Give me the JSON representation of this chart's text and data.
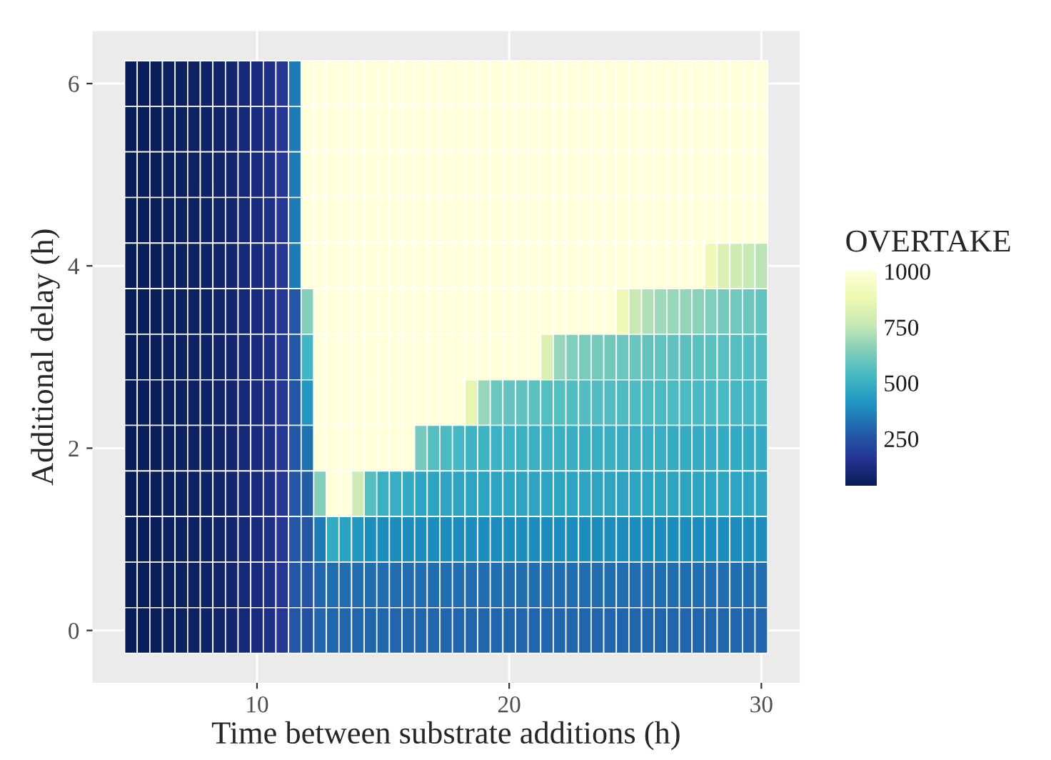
{
  "chart_data": {
    "type": "heatmap",
    "xlabel": "Time between substrate additions (h)",
    "ylabel": "Additional delay (h)",
    "legend_title": "OVERTAKE",
    "x": [
      5,
      5.5,
      6,
      6.5,
      7,
      7.5,
      8,
      8.5,
      9,
      9.5,
      10,
      10.5,
      11,
      11.5,
      12,
      12.5,
      13,
      13.5,
      14,
      14.5,
      15,
      15.5,
      16,
      16.5,
      17,
      17.5,
      18,
      18.5,
      19,
      19.5,
      20,
      20.5,
      21,
      21.5,
      22,
      22.5,
      23,
      23.5,
      24,
      24.5,
      25,
      25.5,
      26,
      26.5,
      27,
      27.5,
      28,
      28.5,
      29,
      29.5,
      30
    ],
    "y": [
      6,
      5.5,
      5,
      4.5,
      4,
      3.5,
      3,
      2.5,
      2,
      1.5,
      1,
      0.5,
      0
    ],
    "xlim": [
      3.475,
      31.525
    ],
    "ylim": [
      -0.575,
      6.575
    ],
    "xticks": [
      10,
      20,
      30
    ],
    "yticks": [
      0,
      2,
      4,
      6
    ],
    "clim": [
      40,
      1000
    ],
    "cticks": [
      250,
      500,
      750,
      1000
    ],
    "grid": true,
    "cells": [
      [
        40,
        45,
        50,
        55,
        60,
        65,
        70,
        80,
        90,
        100,
        115,
        135,
        170,
        350,
        1000,
        1000,
        1000,
        1000,
        1000,
        1000,
        1000,
        1000,
        1000,
        1000,
        1000,
        1000,
        1000,
        1000,
        1000,
        1000,
        1000,
        1000,
        1000,
        1000,
        1000,
        1000,
        1000,
        1000,
        1000,
        1000,
        1000,
        1000,
        1000,
        1000,
        1000,
        1000,
        1000,
        1000,
        1000,
        1000,
        1000
      ],
      [
        40,
        45,
        50,
        55,
        60,
        65,
        70,
        80,
        90,
        100,
        115,
        135,
        170,
        350,
        1000,
        1000,
        1000,
        1000,
        1000,
        1000,
        1000,
        1000,
        1000,
        1000,
        1000,
        1000,
        1000,
        1000,
        1000,
        1000,
        1000,
        1000,
        1000,
        1000,
        1000,
        1000,
        1000,
        1000,
        1000,
        1000,
        1000,
        1000,
        1000,
        1000,
        1000,
        1000,
        1000,
        1000,
        1000,
        1000,
        1000
      ],
      [
        40,
        45,
        50,
        55,
        60,
        65,
        70,
        80,
        90,
        100,
        115,
        135,
        170,
        350,
        1000,
        1000,
        1000,
        1000,
        1000,
        1000,
        1000,
        1000,
        1000,
        1000,
        1000,
        1000,
        1000,
        1000,
        1000,
        1000,
        1000,
        1000,
        1000,
        1000,
        1000,
        1000,
        1000,
        1000,
        1000,
        1000,
        1000,
        1000,
        1000,
        1000,
        1000,
        1000,
        1000,
        1000,
        1000,
        1000,
        1000
      ],
      [
        40,
        45,
        50,
        55,
        60,
        65,
        70,
        80,
        90,
        100,
        115,
        135,
        170,
        350,
        1000,
        1000,
        1000,
        1000,
        1000,
        1000,
        1000,
        1000,
        1000,
        1000,
        1000,
        1000,
        1000,
        1000,
        1000,
        1000,
        1000,
        1000,
        1000,
        1000,
        1000,
        1000,
        1000,
        1000,
        1000,
        1000,
        1000,
        1000,
        1000,
        1000,
        1000,
        1000,
        1000,
        1000,
        1000,
        1000,
        1000
      ],
      [
        40,
        45,
        50,
        55,
        60,
        65,
        70,
        80,
        90,
        100,
        115,
        135,
        170,
        350,
        1000,
        1000,
        1000,
        1000,
        1000,
        1000,
        1000,
        1000,
        1000,
        1000,
        1000,
        1000,
        1000,
        1000,
        1000,
        1000,
        1000,
        1000,
        1000,
        1000,
        1000,
        1000,
        1000,
        1000,
        1000,
        1000,
        1000,
        1000,
        1000,
        1000,
        1000,
        1000,
        900,
        820,
        780,
        760,
        740
      ],
      [
        40,
        45,
        50,
        55,
        60,
        65,
        70,
        80,
        90,
        100,
        115,
        135,
        170,
        260,
        650,
        1000,
        1000,
        1000,
        1000,
        1000,
        1000,
        1000,
        1000,
        1000,
        1000,
        1000,
        1000,
        1000,
        1000,
        1000,
        1000,
        1000,
        1000,
        1000,
        1000,
        1000,
        1000,
        1000,
        1000,
        900,
        760,
        720,
        690,
        680,
        670,
        660,
        640,
        620,
        610,
        600,
        590
      ],
      [
        40,
        45,
        50,
        55,
        60,
        65,
        70,
        80,
        90,
        100,
        115,
        135,
        170,
        260,
        520,
        1000,
        1000,
        1000,
        1000,
        1000,
        1000,
        1000,
        1000,
        1000,
        1000,
        1000,
        1000,
        1000,
        1000,
        1000,
        1000,
        1000,
        1000,
        820,
        680,
        640,
        630,
        620,
        610,
        600,
        595,
        590,
        585,
        580,
        575,
        570,
        570,
        565,
        560,
        555,
        550
      ],
      [
        40,
        45,
        50,
        55,
        60,
        65,
        70,
        80,
        90,
        100,
        115,
        135,
        170,
        260,
        420,
        1000,
        1000,
        1000,
        1000,
        1000,
        1000,
        1000,
        1000,
        1000,
        1000,
        1000,
        1000,
        850,
        680,
        600,
        590,
        580,
        570,
        560,
        560,
        555,
        555,
        550,
        550,
        545,
        545,
        540,
        540,
        540,
        540,
        535,
        535,
        535,
        530,
        530,
        530
      ],
      [
        40,
        45,
        50,
        55,
        60,
        65,
        70,
        80,
        90,
        100,
        115,
        135,
        170,
        260,
        330,
        1000,
        1000,
        1000,
        1000,
        1000,
        1000,
        1000,
        1000,
        620,
        560,
        540,
        530,
        510,
        510,
        505,
        505,
        500,
        500,
        500,
        500,
        495,
        495,
        495,
        495,
        490,
        490,
        490,
        490,
        485,
        485,
        485,
        485,
        480,
        480,
        480,
        480
      ],
      [
        40,
        45,
        50,
        55,
        60,
        65,
        70,
        80,
        90,
        100,
        115,
        135,
        170,
        260,
        280,
        650,
        1000,
        1000,
        780,
        560,
        500,
        490,
        480,
        460,
        460,
        460,
        460,
        460,
        460,
        460,
        460,
        460,
        460,
        460,
        460,
        460,
        460,
        460,
        460,
        460,
        460,
        460,
        460,
        460,
        460,
        460,
        460,
        460,
        460,
        460,
        460
      ],
      [
        40,
        45,
        50,
        55,
        60,
        65,
        70,
        80,
        90,
        100,
        115,
        135,
        170,
        260,
        260,
        350,
        480,
        450,
        420,
        390,
        390,
        390,
        390,
        390,
        390,
        390,
        390,
        390,
        390,
        390,
        390,
        390,
        390,
        390,
        390,
        390,
        390,
        390,
        390,
        390,
        390,
        390,
        390,
        390,
        390,
        390,
        390,
        390,
        390,
        390,
        390
      ],
      [
        40,
        45,
        50,
        55,
        60,
        65,
        70,
        80,
        90,
        100,
        115,
        135,
        170,
        260,
        250,
        300,
        320,
        320,
        320,
        320,
        320,
        320,
        320,
        320,
        320,
        320,
        320,
        320,
        320,
        320,
        320,
        320,
        320,
        320,
        320,
        320,
        320,
        320,
        320,
        320,
        320,
        320,
        320,
        320,
        320,
        320,
        320,
        320,
        320,
        320,
        320
      ],
      [
        40,
        45,
        50,
        55,
        60,
        65,
        70,
        80,
        90,
        100,
        115,
        135,
        170,
        260,
        240,
        300,
        300,
        300,
        300,
        300,
        300,
        300,
        300,
        300,
        300,
        300,
        300,
        300,
        300,
        300,
        300,
        300,
        300,
        300,
        300,
        300,
        300,
        300,
        300,
        300,
        300,
        300,
        300,
        300,
        300,
        300,
        300,
        300,
        300,
        300,
        300
      ]
    ]
  }
}
